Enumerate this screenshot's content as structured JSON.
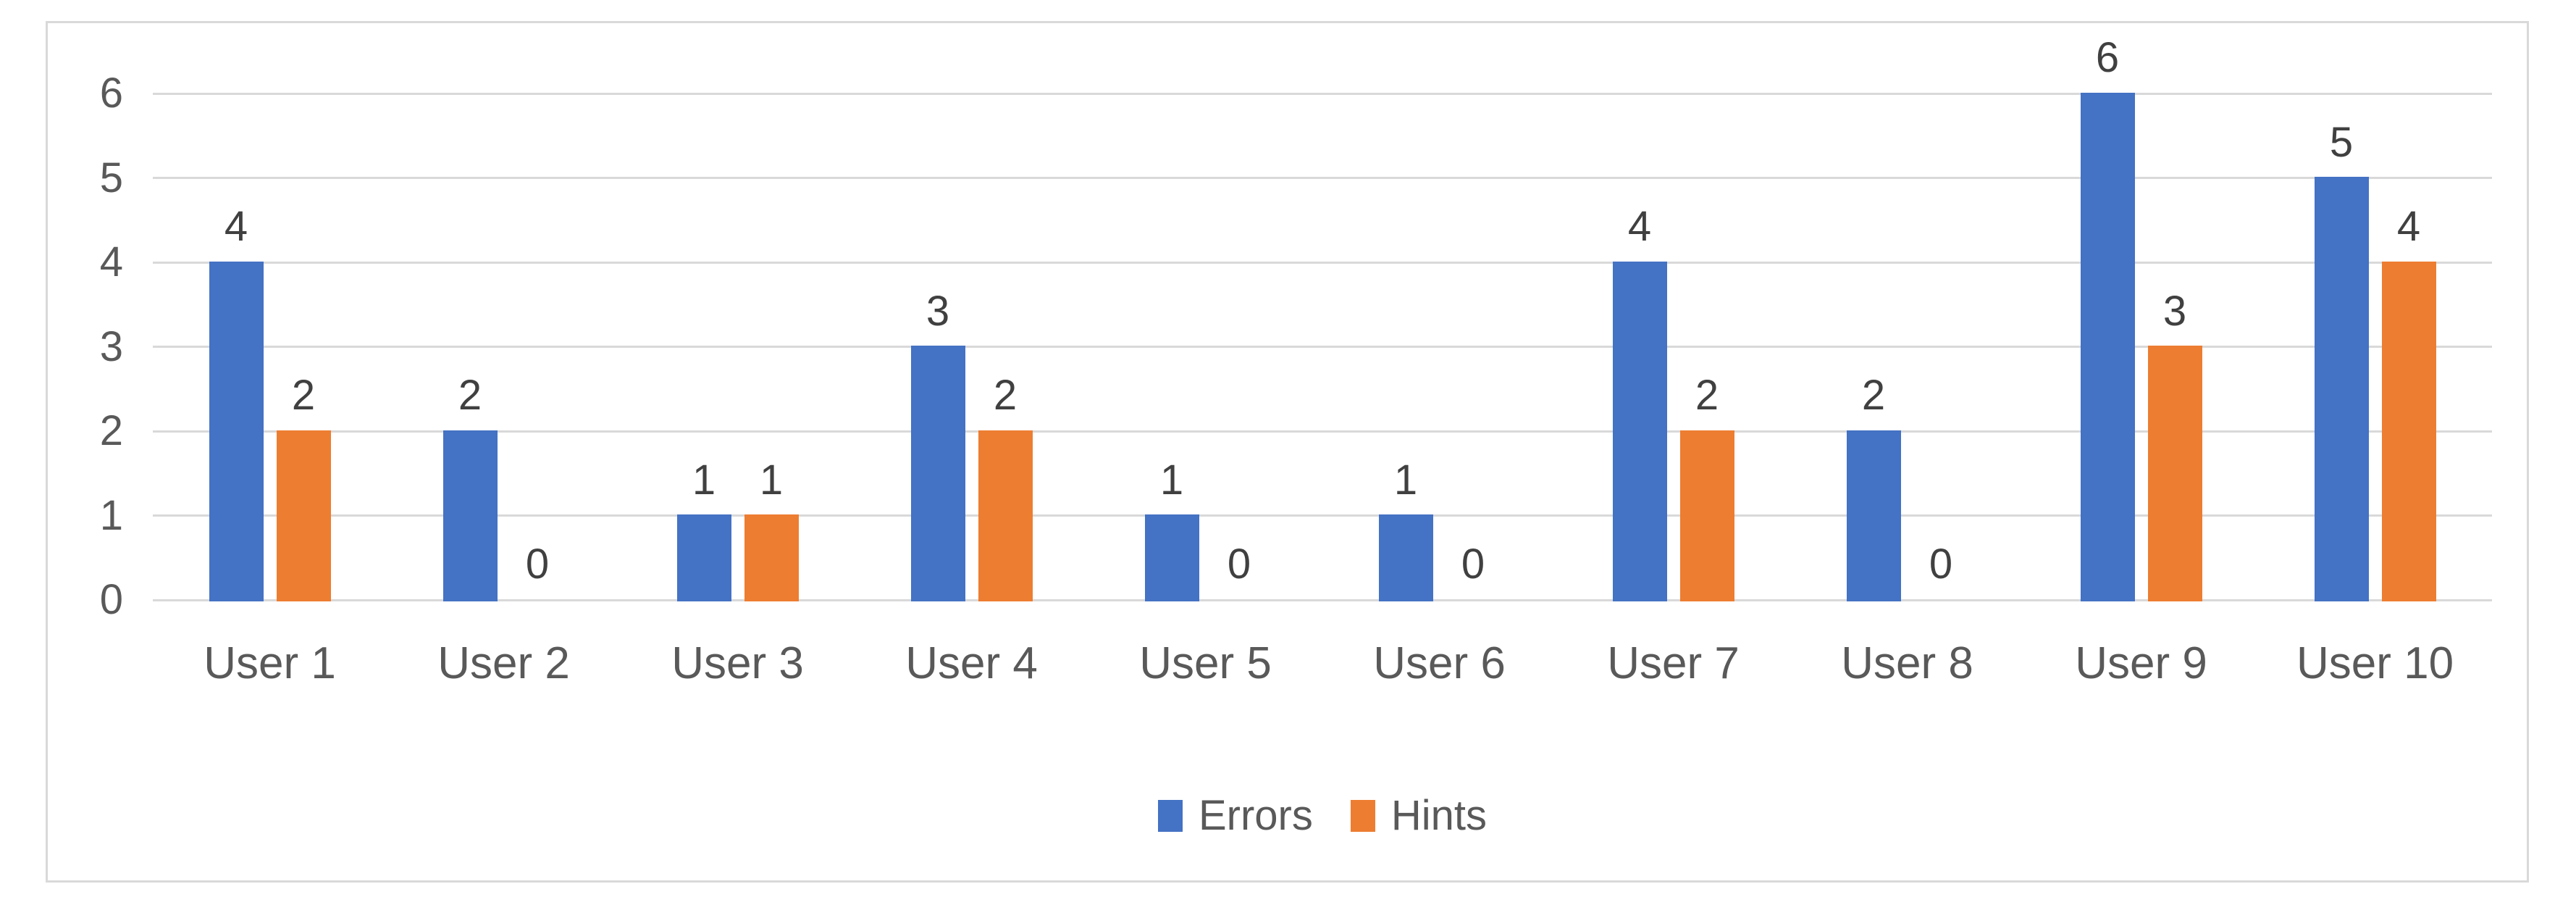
{
  "chart_data": {
    "type": "bar",
    "title": "",
    "categories": [
      "User 1",
      "User 2",
      "User 3",
      "User 4",
      "User 5",
      "User 6",
      "User 7",
      "User 8",
      "User 9",
      "User 10"
    ],
    "series": [
      {
        "name": "Errors",
        "color": "#4472C4",
        "values": [
          4,
          2,
          1,
          3,
          1,
          1,
          4,
          2,
          6,
          5
        ]
      },
      {
        "name": "Hints",
        "color": "#ED7D31",
        "values": [
          2,
          0,
          1,
          2,
          0,
          0,
          2,
          0,
          3,
          4
        ]
      }
    ],
    "ylim": [
      0,
      6
    ],
    "yticks": [
      0,
      1,
      2,
      3,
      4,
      5,
      6
    ],
    "xlabel": "",
    "ylabel": "",
    "grid": true,
    "data_labels": true,
    "legend_position": "bottom"
  },
  "colors": {
    "errors_bar": "#4472C4",
    "hints_bar": "#ED7D31",
    "gridline": "#D9D9D9",
    "frame_border": "#D9D9D9",
    "axis_text": "#595959",
    "data_label_text": "#404040",
    "background": "#FFFFFF"
  }
}
